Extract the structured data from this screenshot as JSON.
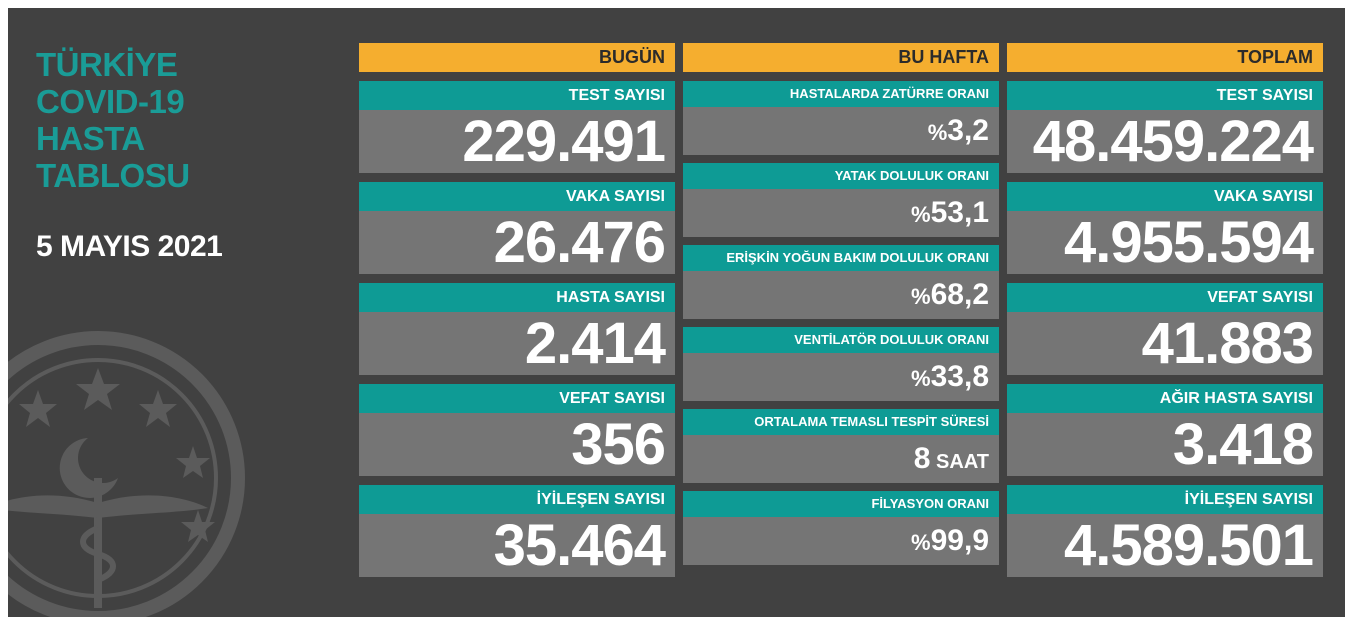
{
  "header": {
    "title_lines": [
      "TÜRKİYE",
      "COVID-19",
      "HASTA",
      "TABLOSU"
    ],
    "date": "5 MAYIS 2021"
  },
  "colors": {
    "accent_orange": "#f5ae2f",
    "teal": "#0e9b95",
    "title_teal": "#1a9c97",
    "card_gray": "#757575",
    "background": "#414141"
  },
  "emblem": {
    "icon": "ministry-of-health-emblem-icon"
  },
  "today": {
    "heading": "BUGÜN",
    "cards": [
      {
        "label": "TEST SAYISI",
        "value": "229.491"
      },
      {
        "label": "VAKA SAYISI",
        "value": "26.476"
      },
      {
        "label": "HASTA SAYISI",
        "value": "2.414"
      },
      {
        "label": "VEFAT SAYISI",
        "value": "356"
      },
      {
        "label": "İYİLEŞEN SAYISI",
        "value": "35.464"
      }
    ]
  },
  "week": {
    "heading": "BU HAFTA",
    "cards": [
      {
        "label": "HASTALARDA ZATÜRRE ORANI",
        "prefix": "%",
        "value": "3,2",
        "unit": ""
      },
      {
        "label": "YATAK DOLULUK ORANI",
        "prefix": "%",
        "value": "53,1",
        "unit": ""
      },
      {
        "label": "ERİŞKİN YOĞUN BAKIM DOLULUK ORANI",
        "prefix": "%",
        "value": "68,2",
        "unit": ""
      },
      {
        "label": "VENTİLATÖR DOLULUK ORANI",
        "prefix": "%",
        "value": "33,8",
        "unit": ""
      },
      {
        "label": "ORTALAMA TEMASLI TESPİT SÜRESİ",
        "prefix": "",
        "value": "8",
        "unit": " SAAT"
      },
      {
        "label": "FİLYASYON ORANI",
        "prefix": "%",
        "value": "99,9",
        "unit": ""
      }
    ]
  },
  "total": {
    "heading": "TOPLAM",
    "cards": [
      {
        "label": "TEST SAYISI",
        "value": "48.459.224"
      },
      {
        "label": "VAKA SAYISI",
        "value": "4.955.594"
      },
      {
        "label": "VEFAT SAYISI",
        "value": "41.883"
      },
      {
        "label": "AĞIR HASTA SAYISI",
        "value": "3.418"
      },
      {
        "label": "İYİLEŞEN SAYISI",
        "value": "4.589.501"
      }
    ]
  }
}
